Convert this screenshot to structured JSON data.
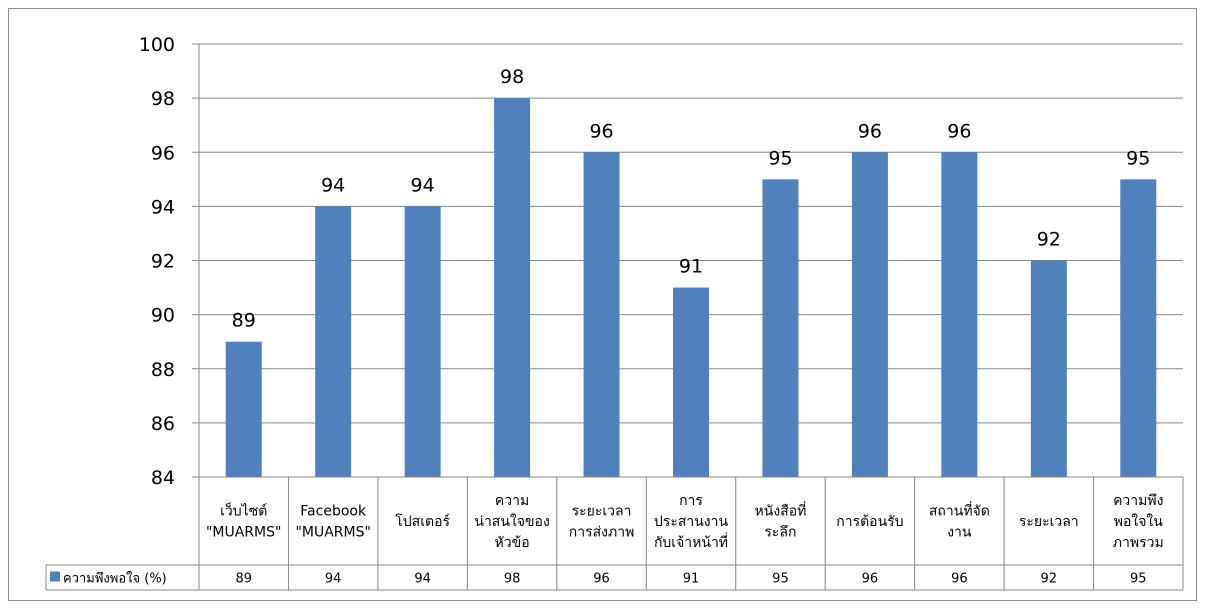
{
  "chart_data": {
    "type": "bar",
    "categories": [
      [
        "เว็บไซต์",
        "\"MUARMS\""
      ],
      [
        "Facebook",
        "\"MUARMS\""
      ],
      [
        "โปสเตอร์"
      ],
      [
        "ความ",
        "น่าสนใจของ",
        "หัวข้อ"
      ],
      [
        "ระยะเวลา",
        "การส่งภาพ"
      ],
      [
        "การ",
        "ประสานงาน",
        "กับเจ้าหน้าที่"
      ],
      [
        "หนังสือที่",
        "ระลึก"
      ],
      [
        "การต้อนรับ"
      ],
      [
        "สถานที่จัด",
        "งาน"
      ],
      [
        "ระยะเวลา"
      ],
      [
        "ความพึง",
        "พอใจใน",
        "ภาพรวม"
      ]
    ],
    "series": [
      {
        "name": "ความพึงพอใจ (%)",
        "values": [
          89,
          94,
          94,
          98,
          96,
          91,
          95,
          96,
          96,
          92,
          95
        ],
        "color": "#4F81BD"
      }
    ],
    "y_ticks": [
      "84",
      "86",
      "88",
      "90",
      "92",
      "94",
      "96",
      "98",
      "100"
    ],
    "ylim": [
      84,
      100
    ],
    "grid": true,
    "data_labels": true,
    "legend": "data-table-left"
  }
}
